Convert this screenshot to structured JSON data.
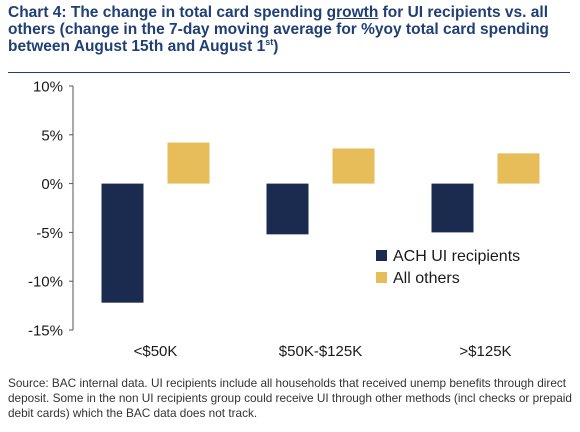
{
  "title": {
    "before": "Chart 4: The change in total card spending ",
    "underlined": "growth",
    "after": " for UI recipients vs. all others (change in the 7-day moving average for %yoy total card spending between August 15th and August 1",
    "sup": "st",
    "close": ")"
  },
  "source": "Source: BAC internal data. UI recipients include all households that received unemp benefits through direct deposit. Some in the non UI recipients group could receive UI through other methods (incl checks or prepaid debit cards) which the BAC data does not track.",
  "colors": {
    "navy": "#1a2b4f",
    "gold": "#e6bd59",
    "title": "#1f3f75"
  },
  "chart_data": {
    "type": "bar",
    "categories": [
      "<$50K",
      "$50K-$125K",
      ">$125K"
    ],
    "series": [
      {
        "name": "ACH UI recipients",
        "values": [
          -12.2,
          -5.2,
          -5.0
        ],
        "color": "#1a2b4f"
      },
      {
        "name": "All others",
        "values": [
          4.2,
          3.6,
          3.1
        ],
        "color": "#e6bd59"
      }
    ],
    "yticks": [
      "10%",
      "5%",
      "0%",
      "-5%",
      "-10%",
      "-15%"
    ],
    "ylim": [
      -15,
      10
    ],
    "legend": "center-right",
    "grid": false
  }
}
